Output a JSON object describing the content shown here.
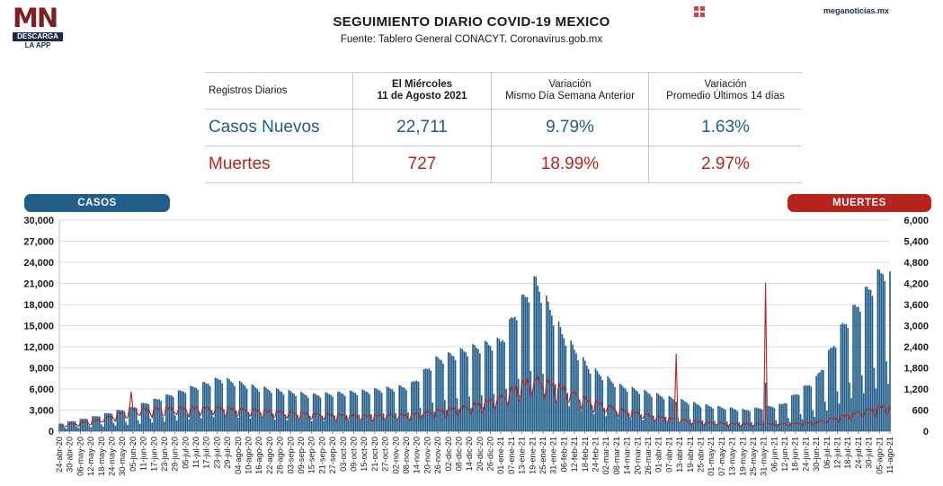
{
  "logo": {
    "letters": "MN",
    "tagline": "DESCARGA",
    "sub": "LA APP"
  },
  "header": {
    "title": "SEGUIMIENTO DIARIO COVID-19 MEXICO",
    "source": "Fuente: Tablero General CONACYT. Coronavirus.gob.mx",
    "site": "meganoticias.mx"
  },
  "stats": {
    "col_label": "Registros Diarios",
    "col_date_line1": "El Miércoles",
    "col_date_line2": "11 de Agosto 2021",
    "col_var1_line1": "Variación",
    "col_var1_line2": "Mismo Día Semana Anterior",
    "col_var2_line1": "Variación",
    "col_var2_line2": "Promedio Últimos 14 días",
    "rows": [
      {
        "label": "Casos Nuevos",
        "value": "22,711",
        "var_week": "9.79%",
        "var_14d": "1.63%"
      },
      {
        "label": "Muertes",
        "value": "727",
        "var_week": "18.99%",
        "var_14d": "2.97%"
      }
    ]
  },
  "colors": {
    "cases": "#1f5c8a",
    "deaths": "#b7231b"
  },
  "pills": {
    "left": "CASOS",
    "right": "MUERTES"
  },
  "chart_data": {
    "type": "bar",
    "combo": "bars (cases, left axis) + line (deaths, right axis)",
    "x_start": "2020-04-24",
    "x_end": "2021-08-11",
    "x_tick_labels": [
      "24-abr-20",
      "30-abr-20",
      "06-may-20",
      "12-may-20",
      "18-may-20",
      "24-may-20",
      "30-may-20",
      "05-jun-20",
      "11-jun-20",
      "17-jun-20",
      "23-jun-20",
      "29-jun-20",
      "05-jul-20",
      "11-jul-20",
      "17-jul-20",
      "23-jul-20",
      "29-jul-20",
      "04-ago-20",
      "10-ago-20",
      "16-ago-20",
      "22-ago-20",
      "28-ago-20",
      "03-sep-20",
      "09-sep-20",
      "15-sep-20",
      "21-sep-20",
      "27-sep-20",
      "03-oct-20",
      "09-oct-20",
      "15-oct-20",
      "21-oct-20",
      "27-oct-20",
      "02-nov-20",
      "08-nov-20",
      "14-nov-20",
      "20-nov-20",
      "26-nov-20",
      "02-dic-20",
      "08-dic-20",
      "14-dic-20",
      "20-dic-20",
      "26-dic-20",
      "01-ene-21",
      "07-ene-21",
      "13-ene-21",
      "19-ene-21",
      "25-ene-21",
      "31-ene-21",
      "06-feb-21",
      "12-feb-21",
      "18-feb-21",
      "24-feb-21",
      "02-mar-21",
      "08-mar-21",
      "14-mar-21",
      "20-mar-21",
      "26-mar-21",
      "01-abr-21",
      "07-abr-21",
      "13-abr-21",
      "19-abr-21",
      "25-abr-21",
      "01-may-21",
      "07-may-21",
      "13-may-21",
      "19-may-21",
      "25-may-21",
      "31-may-21",
      "06-jun-21",
      "12-jun-21",
      "18-jun-21",
      "24-jun-21",
      "30-jun-21",
      "06-jul-21",
      "12-jul-21",
      "18-jul-21",
      "24-jul-21",
      "30-jul-21",
      "05-ago-21",
      "11-ago-21"
    ],
    "y_left_ticks": [
      "0",
      "3,000",
      "6,000",
      "9,000",
      "12,000",
      "15,000",
      "18,000",
      "21,000",
      "24,000",
      "27,000",
      "30,000"
    ],
    "y_right_ticks": [
      "0",
      "600",
      "1,200",
      "1,800",
      "2,400",
      "3,000",
      "3,600",
      "4,200",
      "4,800",
      "5,400",
      "6,000"
    ],
    "ylim_left": [
      0,
      30000
    ],
    "ylim_right": [
      0,
      6000
    ],
    "grid": true,
    "series": [
      {
        "name": "CASOS",
        "kind": "bar",
        "axis": "left",
        "x": [
          "2020-04-24",
          "2020-05-15",
          "2020-06-05",
          "2020-07-01",
          "2020-07-25",
          "2020-08-15",
          "2020-09-15",
          "2020-10-15",
          "2020-11-10",
          "2020-11-25",
          "2020-12-15",
          "2021-01-01",
          "2021-01-12",
          "2021-01-21",
          "2021-02-05",
          "2021-02-20",
          "2021-03-10",
          "2021-04-01",
          "2021-04-25",
          "2021-05-20",
          "2021-06-10",
          "2021-06-30",
          "2021-07-15",
          "2021-07-30",
          "2021-08-11"
        ],
        "values": [
          1000,
          2000,
          3200,
          5200,
          7000,
          5800,
          4800,
          5300,
          6000,
          9500,
          11000,
          12000,
          17000,
          20000,
          13000,
          8500,
          6000,
          4800,
          3500,
          2800,
          3500,
          7000,
          14000,
          19000,
          22711
        ]
      },
      {
        "name": "MUERTES",
        "kind": "line",
        "axis": "right",
        "x": [
          "2020-04-24",
          "2020-05-15",
          "2020-06-05",
          "2020-07-01",
          "2020-07-25",
          "2020-08-15",
          "2020-09-15",
          "2020-10-15",
          "2020-11-10",
          "2020-11-25",
          "2020-12-15",
          "2021-01-01",
          "2021-01-12",
          "2021-01-21",
          "2021-02-05",
          "2021-02-20",
          "2021-03-10",
          "2021-04-01",
          "2021-04-25",
          "2021-05-20",
          "2021-06-10",
          "2021-06-30",
          "2021-07-15",
          "2021-07-30",
          "2021-08-11"
        ],
        "values": [
          150,
          300,
          600,
          650,
          650,
          580,
          480,
          430,
          460,
          560,
          700,
          950,
          1300,
          1450,
          1200,
          850,
          600,
          400,
          250,
          200,
          200,
          250,
          420,
          600,
          727
        ]
      }
    ],
    "spikes": [
      {
        "series": "CASOS",
        "x": "2021-06-01",
        "value": 6900
      },
      {
        "series": "MUERTES",
        "x": "2020-06-04",
        "value": 1120
      },
      {
        "series": "MUERTES",
        "x": "2021-04-11",
        "value": 2190
      },
      {
        "series": "MUERTES",
        "x": "2021-06-01",
        "value": 4210
      }
    ]
  }
}
